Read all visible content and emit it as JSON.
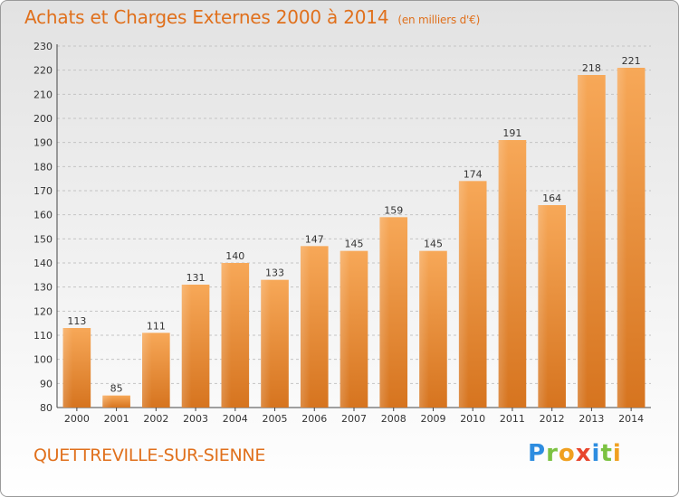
{
  "header": {
    "title": "Achats et Charges Externes 2000 à 2014",
    "subtitle": "(en milliers d'€)"
  },
  "footer": {
    "location": "QUETTREVILLE-SUR-SIENNE",
    "logo": "Proxiti"
  },
  "colors": {
    "title": "#e0701c",
    "bar_light": "#f5a655",
    "bar_dark": "#d97a26"
  },
  "chart_data": {
    "type": "bar",
    "title": "Achats et Charges Externes 2000 à 2014",
    "subtitle": "(en milliers d'€)",
    "categories": [
      "2000",
      "2001",
      "2002",
      "2003",
      "2004",
      "2005",
      "2006",
      "2007",
      "2008",
      "2009",
      "2010",
      "2011",
      "2012",
      "2013",
      "2014"
    ],
    "values": [
      113,
      85,
      111,
      131,
      140,
      133,
      147,
      145,
      159,
      145,
      174,
      191,
      164,
      218,
      221
    ],
    "yticks": [
      80,
      90,
      100,
      110,
      120,
      130,
      140,
      150,
      160,
      170,
      180,
      190,
      200,
      210,
      220,
      230
    ],
    "ylim": [
      80,
      230
    ],
    "xlabel": "",
    "ylabel": "",
    "grid": true,
    "data_labels": true
  }
}
